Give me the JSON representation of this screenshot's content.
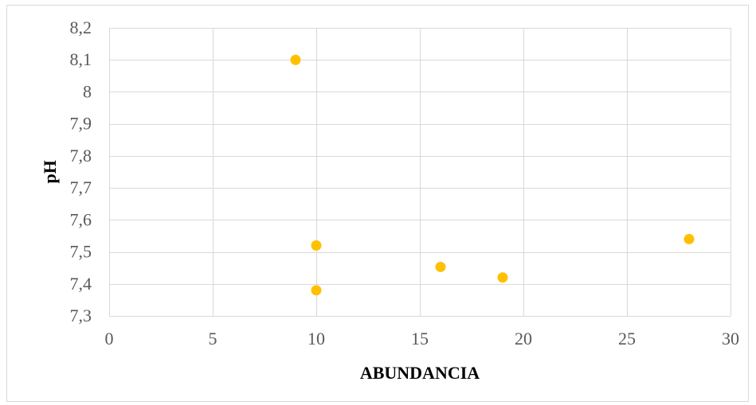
{
  "chart_data": {
    "type": "scatter",
    "title": "",
    "xlabel": "ABUNDANCIA",
    "ylabel": "pH",
    "xlim": [
      0,
      30
    ],
    "ylim": [
      7.3,
      8.2
    ],
    "x_ticks": [
      0,
      5,
      10,
      15,
      20,
      25,
      30
    ],
    "x_tick_labels": [
      "0",
      "5",
      "10",
      "15",
      "20",
      "25",
      "30"
    ],
    "y_ticks": [
      7.3,
      7.4,
      7.5,
      7.6,
      7.7,
      7.8,
      7.9,
      8.0,
      8.1,
      8.2
    ],
    "y_tick_labels": [
      "7,3",
      "7,4",
      "7,5",
      "7,6",
      "7,7",
      "7,8",
      "7,9",
      "8",
      "8,1",
      "8,2"
    ],
    "grid": true,
    "legend": "none",
    "colors": {
      "marker": "#FFC000",
      "grid": "#D9D9D9",
      "frame": "#D9D9D9",
      "tick_text": "#595959"
    },
    "series": [
      {
        "points": [
          {
            "x": 9,
            "y": 8.1
          },
          {
            "x": 10,
            "y": 7.52
          },
          {
            "x": 10,
            "y": 7.38
          },
          {
            "x": 16,
            "y": 7.453
          },
          {
            "x": 19,
            "y": 7.42
          },
          {
            "x": 28,
            "y": 7.54
          }
        ]
      }
    ]
  }
}
